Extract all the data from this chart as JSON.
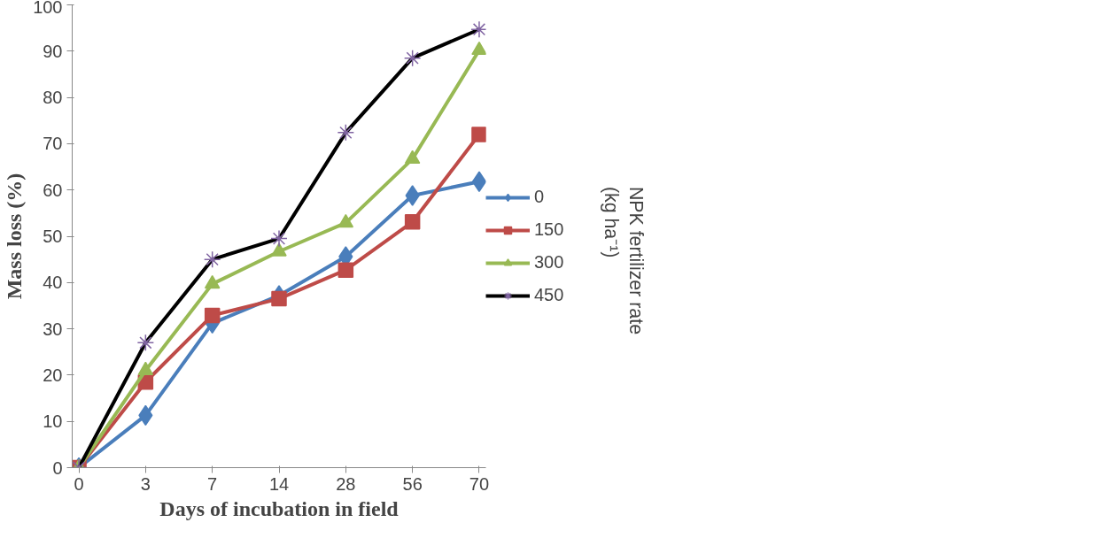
{
  "chart_data": {
    "type": "line",
    "xlabel": "Days of incubation in field",
    "ylabel": "Mass loss (%)",
    "legend_title": "NPK fertilizer rate (kg ha⁻¹)",
    "categories": [
      "0",
      "3",
      "7",
      "14",
      "28",
      "56",
      "70"
    ],
    "ylim": [
      0,
      100
    ],
    "yticks": [
      0,
      10,
      20,
      30,
      40,
      50,
      60,
      70,
      80,
      90,
      100
    ],
    "grid": false,
    "legend": "right",
    "series": [
      {
        "name": "0",
        "color": "#4a7ebb",
        "marker": "diamond",
        "values": [
          0,
          11.3,
          31.2,
          37.2,
          45.6,
          58.8,
          61.8
        ]
      },
      {
        "name": "150",
        "color": "#be4b48",
        "marker": "square",
        "values": [
          0,
          18.5,
          32.9,
          36.5,
          42.7,
          53.1,
          72
        ]
      },
      {
        "name": "300",
        "color": "#98b954",
        "marker": "triangle",
        "values": [
          0,
          21,
          39.7,
          46.7,
          52.9,
          66.7,
          90.2
        ]
      },
      {
        "name": "450",
        "color": "#000000",
        "marker": "cross",
        "values": [
          0,
          27,
          45,
          49.5,
          72.4,
          88.5,
          94.7
        ]
      }
    ]
  }
}
